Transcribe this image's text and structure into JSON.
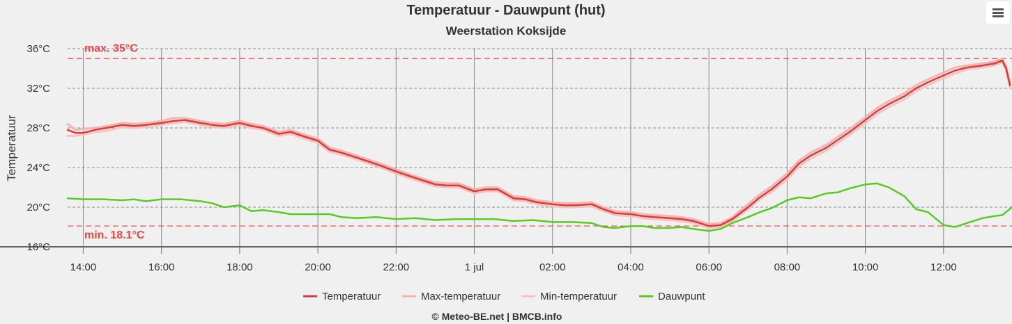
{
  "chart_data": {
    "type": "line",
    "title": "Temperatuur - Dauwpunt (hut)",
    "subtitle": "Weerstation Koksijde",
    "ylabel": "Temperatuur",
    "xlabel": "",
    "ylim": [
      16,
      36
    ],
    "yticks": [
      "36°C",
      "32°C",
      "28°C",
      "24°C",
      "20°C",
      "16°C"
    ],
    "x_range_hours": [
      13.6,
      37.75
    ],
    "xticks": [
      {
        "h": 14,
        "label": "14:00"
      },
      {
        "h": 16,
        "label": "16:00"
      },
      {
        "h": 18,
        "label": "18:00"
      },
      {
        "h": 20,
        "label": "20:00"
      },
      {
        "h": 22,
        "label": "22:00"
      },
      {
        "h": 24,
        "label": "1 jul"
      },
      {
        "h": 26,
        "label": "02:00"
      },
      {
        "h": 28,
        "label": "04:00"
      },
      {
        "h": 30,
        "label": "06:00"
      },
      {
        "h": 32,
        "label": "08:00"
      },
      {
        "h": 34,
        "label": "10:00"
      },
      {
        "h": 36,
        "label": "12:00"
      }
    ],
    "plot_lines": [
      {
        "value": 35,
        "label": "max. 35°C",
        "color": "#ee4444"
      },
      {
        "value": 18.1,
        "label": "min. 18.1°C",
        "color": "#ee4444"
      }
    ],
    "legend": [
      "Temperatuur",
      "Max-temperatuur",
      "Min-temperatuur",
      "Dauwpunt"
    ],
    "legend_position": "bottom-center",
    "grid": true,
    "series": [
      {
        "name": "Temperatuur",
        "color": "#d93a3a",
        "x": [
          13.6,
          13.8,
          14,
          14.3,
          14.6,
          15,
          15.3,
          15.6,
          16,
          16.3,
          16.6,
          17,
          17.3,
          17.6,
          18,
          18.3,
          18.6,
          19,
          19.3,
          19.6,
          20,
          20.3,
          20.6,
          21,
          21.3,
          21.6,
          22,
          22.3,
          22.6,
          23,
          23.3,
          23.6,
          24,
          24.3,
          24.6,
          25,
          25.3,
          25.6,
          26,
          26.3,
          26.6,
          27,
          27.3,
          27.6,
          28,
          28.3,
          28.6,
          29,
          29.3,
          29.6,
          30,
          30.3,
          30.6,
          31,
          31.3,
          31.6,
          32,
          32.3,
          32.6,
          33,
          33.3,
          33.6,
          34,
          34.3,
          34.6,
          35,
          35.3,
          35.6,
          36,
          36.3,
          36.6,
          37,
          37.3,
          37.5,
          37.6,
          37.7
        ],
        "y": [
          27.8,
          27.5,
          27.5,
          27.8,
          28.0,
          28.3,
          28.2,
          28.3,
          28.5,
          28.7,
          28.8,
          28.5,
          28.3,
          28.2,
          28.5,
          28.2,
          28.0,
          27.4,
          27.6,
          27.2,
          26.7,
          25.8,
          25.5,
          25.0,
          24.6,
          24.2,
          23.6,
          23.2,
          22.8,
          22.3,
          22.2,
          22.2,
          21.6,
          21.8,
          21.8,
          20.9,
          20.8,
          20.5,
          20.3,
          20.2,
          20.2,
          20.3,
          19.8,
          19.4,
          19.3,
          19.1,
          19.0,
          18.9,
          18.8,
          18.6,
          18.1,
          18.2,
          18.8,
          20.0,
          21.0,
          21.8,
          23.1,
          24.4,
          25.2,
          26.0,
          26.8,
          27.6,
          28.8,
          29.7,
          30.4,
          31.2,
          32.0,
          32.6,
          33.3,
          33.8,
          34.1,
          34.3,
          34.5,
          34.8,
          34.0,
          32.3
        ]
      },
      {
        "name": "Max-temperatuur",
        "color": "#f4b4b0",
        "x": [
          13.6,
          13.8,
          14,
          14.3,
          14.6,
          15,
          15.3,
          15.6,
          16,
          16.3,
          16.6,
          17,
          17.3,
          17.6,
          18,
          18.3,
          18.6,
          19,
          19.3,
          19.6,
          20,
          20.3,
          20.6,
          21,
          21.3,
          21.6,
          22,
          22.3,
          22.6,
          23,
          23.3,
          23.6,
          24,
          24.3,
          24.6,
          25,
          25.3,
          25.6,
          26,
          26.3,
          26.6,
          27,
          27.3,
          27.6,
          28,
          28.3,
          28.6,
          29,
          29.3,
          29.6,
          30,
          30.3,
          30.6,
          31,
          31.3,
          31.6,
          32,
          32.3,
          32.6,
          33,
          33.3,
          33.6,
          34,
          34.3,
          34.6,
          35,
          35.3,
          35.6,
          36,
          36.3,
          36.6,
          37,
          37.3,
          37.5,
          37.6,
          37.7
        ],
        "y": [
          28.4,
          27.8,
          27.9,
          28.0,
          28.2,
          28.5,
          28.4,
          28.5,
          28.7,
          29.0,
          29.0,
          28.7,
          28.5,
          28.4,
          28.7,
          28.4,
          28.2,
          27.6,
          27.8,
          27.4,
          26.9,
          26.0,
          25.7,
          25.2,
          24.8,
          24.4,
          23.8,
          23.4,
          23.0,
          22.5,
          22.4,
          22.4,
          21.8,
          22.0,
          22.0,
          21.1,
          21.0,
          20.7,
          20.5,
          20.4,
          20.4,
          20.5,
          20.0,
          19.6,
          19.5,
          19.3,
          19.2,
          19.1,
          19.0,
          18.8,
          18.3,
          18.4,
          19.0,
          20.3,
          21.3,
          22.1,
          23.4,
          24.7,
          25.5,
          26.3,
          27.1,
          27.9,
          29.1,
          30.0,
          30.7,
          31.5,
          32.3,
          32.9,
          33.6,
          34.1,
          34.3,
          34.5,
          34.7,
          35.0,
          34.2,
          32.5
        ]
      },
      {
        "name": "Min-temperatuur",
        "color": "#f6c4c0",
        "x": [
          13.6,
          13.8,
          14,
          14.3,
          14.6,
          15,
          15.3,
          15.6,
          16,
          16.3,
          16.6,
          17,
          17.3,
          17.6,
          18,
          18.3,
          18.6,
          19,
          19.3,
          19.6,
          20,
          20.3,
          20.6,
          21,
          21.3,
          21.6,
          22,
          22.3,
          22.6,
          23,
          23.3,
          23.6,
          24,
          24.3,
          24.6,
          25,
          25.3,
          25.6,
          26,
          26.3,
          26.6,
          27,
          27.3,
          27.6,
          28,
          28.3,
          28.6,
          29,
          29.3,
          29.6,
          30,
          30.3,
          30.6,
          31,
          31.3,
          31.6,
          32,
          32.3,
          32.6,
          33,
          33.3,
          33.6,
          34,
          34.3,
          34.6,
          35,
          35.3,
          35.6,
          36,
          36.3,
          36.6,
          37,
          37.3,
          37.5,
          37.6,
          37.7
        ],
        "y": [
          27.2,
          27.2,
          27.3,
          27.6,
          27.7,
          28.1,
          28.0,
          28.1,
          28.3,
          28.5,
          28.6,
          28.3,
          28.1,
          28.0,
          28.3,
          28.0,
          27.8,
          27.2,
          27.4,
          27.0,
          26.5,
          25.6,
          25.3,
          24.8,
          24.4,
          24.0,
          23.4,
          23.0,
          22.6,
          22.1,
          22.0,
          22.0,
          21.4,
          21.6,
          21.6,
          20.7,
          20.6,
          20.3,
          20.1,
          20.0,
          20.0,
          20.1,
          19.6,
          19.2,
          19.1,
          18.9,
          18.8,
          18.7,
          18.6,
          18.4,
          17.9,
          18.0,
          18.6,
          19.8,
          20.8,
          21.5,
          22.8,
          24.1,
          24.9,
          25.7,
          26.5,
          27.3,
          28.5,
          29.4,
          30.1,
          30.9,
          31.7,
          32.3,
          33.0,
          33.5,
          33.9,
          34.1,
          34.3,
          34.6,
          33.8,
          32.0
        ]
      },
      {
        "name": "Dauwpunt",
        "color": "#55cc22",
        "x": [
          13.6,
          14,
          14.5,
          15,
          15.3,
          15.6,
          16,
          16.5,
          17,
          17.3,
          17.6,
          18,
          18.3,
          18.6,
          19,
          19.3,
          19.6,
          20,
          20.3,
          20.6,
          21,
          21.5,
          22,
          22.5,
          23,
          23.5,
          24,
          24.5,
          25,
          25.5,
          26,
          26.5,
          27,
          27.3,
          27.6,
          28,
          28.3,
          28.6,
          29,
          29.3,
          29.6,
          30,
          30.3,
          30.6,
          31,
          31.3,
          31.6,
          32,
          32.3,
          32.6,
          33,
          33.3,
          33.6,
          34,
          34.3,
          34.6,
          35,
          35.3,
          35.6,
          36,
          36.3,
          36.6,
          37,
          37.3,
          37.5,
          37.75
        ],
        "y": [
          20.9,
          20.8,
          20.8,
          20.7,
          20.8,
          20.6,
          20.8,
          20.8,
          20.6,
          20.4,
          20.0,
          20.2,
          19.6,
          19.7,
          19.5,
          19.3,
          19.3,
          19.3,
          19.3,
          19.0,
          18.9,
          19.0,
          18.8,
          18.9,
          18.7,
          18.8,
          18.8,
          18.8,
          18.6,
          18.7,
          18.5,
          18.5,
          18.4,
          18.0,
          17.9,
          18.1,
          18.1,
          17.9,
          17.9,
          18.0,
          17.8,
          17.6,
          17.8,
          18.4,
          19.0,
          19.5,
          19.9,
          20.7,
          21.0,
          20.9,
          21.4,
          21.5,
          21.9,
          22.3,
          22.4,
          22.0,
          21.1,
          19.8,
          19.5,
          18.2,
          18.0,
          18.4,
          18.9,
          19.1,
          19.2,
          20.0
        ]
      }
    ]
  },
  "credits": "© Meteo-BE.net | BMCB.info"
}
